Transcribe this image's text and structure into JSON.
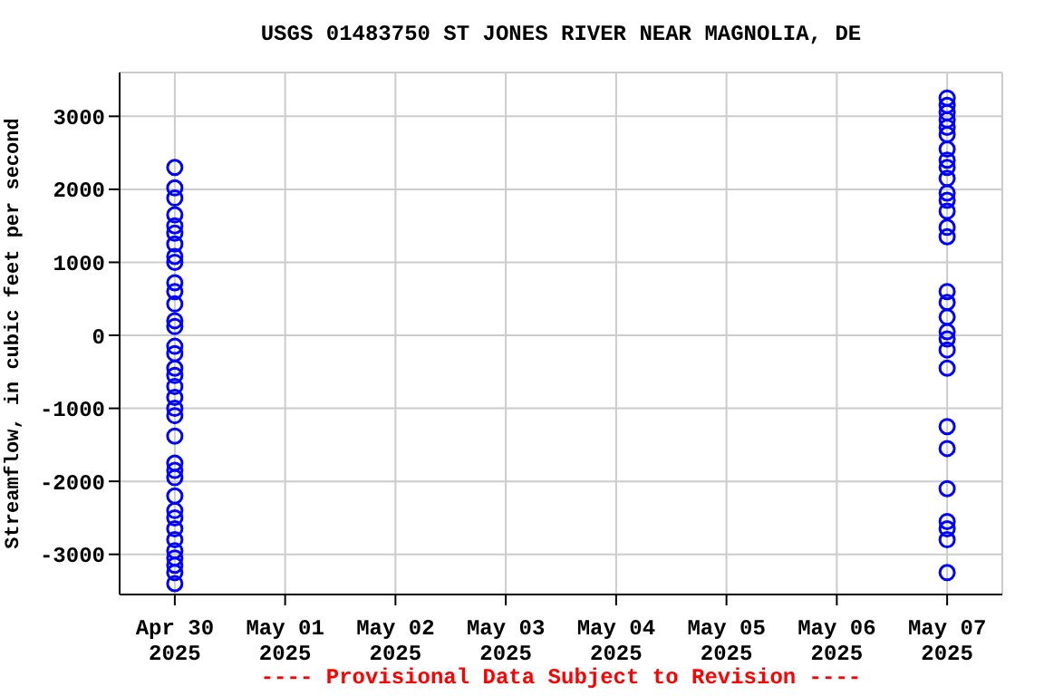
{
  "chart_data": {
    "type": "scatter",
    "title": "USGS 01483750 ST JONES RIVER NEAR MAGNOLIA, DE",
    "ylabel": "Streamflow, in cubic feet per second",
    "annotations": [
      "---- Provisional Data Subject to Revision ----"
    ],
    "series": [
      {
        "color": "#0000ff",
        "x": [
          "2025-04-30",
          "2025-04-30",
          "2025-04-30",
          "2025-04-30",
          "2025-04-30",
          "2025-04-30",
          "2025-04-30",
          "2025-04-30",
          "2025-04-30",
          "2025-04-30",
          "2025-04-30",
          "2025-04-30",
          "2025-04-30",
          "2025-04-30",
          "2025-04-30",
          "2025-04-30",
          "2025-04-30",
          "2025-04-30",
          "2025-04-30",
          "2025-04-30",
          "2025-04-30",
          "2025-04-30",
          "2025-04-30",
          "2025-04-30",
          "2025-04-30",
          "2025-04-30",
          "2025-04-30",
          "2025-04-30",
          "2025-04-30",
          "2025-04-30",
          "2025-04-30",
          "2025-04-30",
          "2025-04-30",
          "2025-04-30",
          "2025-04-30",
          "2025-04-30",
          "2025-05-07",
          "2025-05-07",
          "2025-05-07",
          "2025-05-07",
          "2025-05-07",
          "2025-05-07",
          "2025-05-07",
          "2025-05-07",
          "2025-05-07",
          "2025-05-07",
          "2025-05-07",
          "2025-05-07",
          "2025-05-07",
          "2025-05-07",
          "2025-05-07",
          "2025-05-07",
          "2025-05-07",
          "2025-05-07",
          "2025-05-07",
          "2025-05-07",
          "2025-05-07",
          "2025-05-07",
          "2025-05-07",
          "2025-05-07",
          "2025-05-07",
          "2025-05-07",
          "2025-05-07",
          "2025-05-07",
          "2025-05-07"
        ],
        "values": [
          2300,
          2020,
          1880,
          1650,
          1500,
          1400,
          1250,
          1080,
          1000,
          720,
          600,
          430,
          200,
          120,
          -150,
          -250,
          -450,
          -550,
          -700,
          -850,
          -1000,
          -1100,
          -1380,
          -1750,
          -1850,
          -1950,
          -2200,
          -2400,
          -2500,
          -2650,
          -2800,
          -2950,
          -3050,
          -3150,
          -3250,
          -3400,
          3250,
          3150,
          3050,
          2950,
          2850,
          2750,
          2550,
          2400,
          2300,
          2150,
          1950,
          1850,
          1700,
          1480,
          1350,
          600,
          450,
          250,
          50,
          -50,
          -200,
          -450,
          -1250,
          -1550,
          -2100,
          -2550,
          -2650,
          -2800,
          -3250
        ]
      }
    ],
    "xlim": [
      "2025-04-29T12:00",
      "2025-05-07T12:00"
    ],
    "xticks": [
      {
        "value": "2025-04-30",
        "label": "Apr 30\n2025"
      },
      {
        "value": "2025-05-01",
        "label": "May 01\n2025"
      },
      {
        "value": "2025-05-02",
        "label": "May 02\n2025"
      },
      {
        "value": "2025-05-03",
        "label": "May 03\n2025"
      },
      {
        "value": "2025-05-04",
        "label": "May 04\n2025"
      },
      {
        "value": "2025-05-05",
        "label": "May 05\n2025"
      },
      {
        "value": "2025-05-06",
        "label": "May 06\n2025"
      },
      {
        "value": "2025-05-07",
        "label": "May 07\n2025"
      }
    ],
    "ylim": [
      -3550,
      3600
    ],
    "yticks": [
      -3000,
      -2000,
      -1000,
      0,
      1000,
      2000,
      3000
    ],
    "grid": true,
    "marker": "circle",
    "legend": false
  }
}
